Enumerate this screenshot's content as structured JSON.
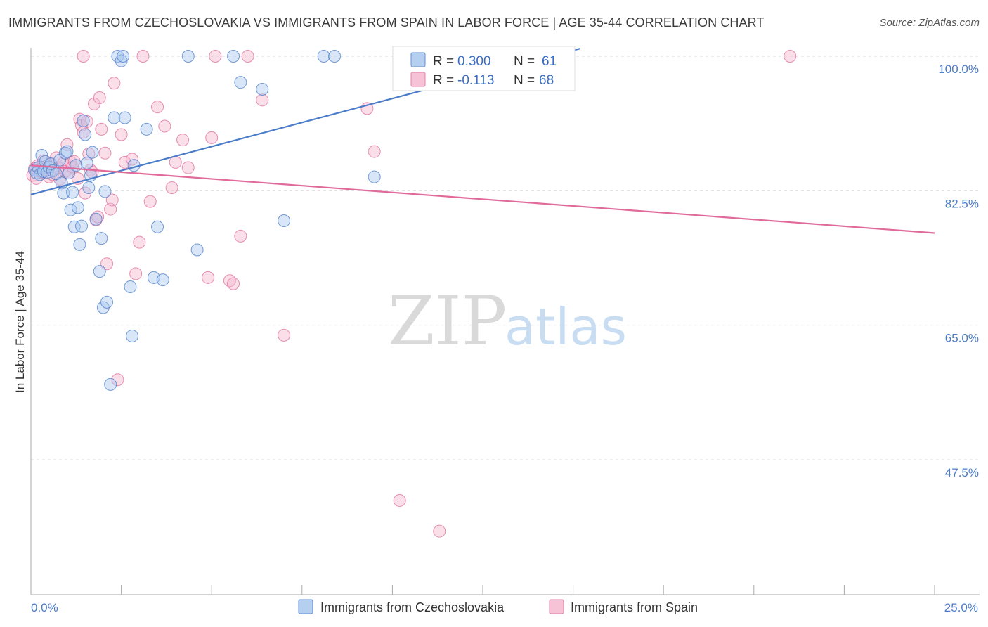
{
  "header": {
    "title": "IMMIGRANTS FROM CZECHOSLOVAKIA VS IMMIGRANTS FROM SPAIN IN LABOR FORCE | AGE 35-44 CORRELATION CHART",
    "source": "Source: ZipAtlas.com"
  },
  "watermark": {
    "zip": "ZIP",
    "atlas": "atlas"
  },
  "colors": {
    "blue": "#4a7cc9",
    "blue_fill": "#a9c7ef",
    "pink": "#e06b9a",
    "pink_fill": "#f5b8cf",
    "grid": "#dddddd"
  },
  "stats": [
    {
      "r_label": "R =",
      "r_value": "0.300",
      "n_label": "N =",
      "n_value": "61"
    },
    {
      "r_label": "R =",
      "r_value": "-0.113",
      "n_label": "N =",
      "n_value": "68"
    }
  ],
  "chart_data": {
    "type": "scatter",
    "title": "IMMIGRANTS FROM CZECHOSLOVAKIA VS IMMIGRANTS FROM SPAIN IN LABOR FORCE | AGE 35-44 CORRELATION CHART",
    "xlabel": "",
    "ylabel": "In Labor Force | Age 35-44",
    "xlim": [
      0,
      25
    ],
    "ylim": [
      32,
      102
    ],
    "x_tick_labels": [
      "0.0%",
      "25.0%"
    ],
    "y_ticks": [
      47.5,
      65.0,
      82.5,
      100.0
    ],
    "y_tick_labels": [
      "47.5%",
      "65.0%",
      "82.5%",
      "100.0%"
    ],
    "grid": true,
    "legend_position": "bottom",
    "series": [
      {
        "name": "Immigrants from Czechoslovakia",
        "color": "#4a7cc9",
        "R": 0.3,
        "N": 61,
        "trend": {
          "x0": 0.0,
          "y0": 82.0,
          "x1": 15.2,
          "y1": 101.0
        },
        "points": [
          [
            0.1,
            85.2
          ],
          [
            0.15,
            84.8
          ],
          [
            0.2,
            85.5
          ],
          [
            0.25,
            84.6
          ],
          [
            0.3,
            87.1
          ],
          [
            0.35,
            85.0
          ],
          [
            0.4,
            86.3
          ],
          [
            0.45,
            84.9
          ],
          [
            0.5,
            85.6
          ],
          [
            0.55,
            86.0
          ],
          [
            0.6,
            85.1
          ],
          [
            0.7,
            84.7
          ],
          [
            0.8,
            86.5
          ],
          [
            0.85,
            83.5
          ],
          [
            0.9,
            82.2
          ],
          [
            0.95,
            87.4
          ],
          [
            1.0,
            87.6
          ],
          [
            1.05,
            84.8
          ],
          [
            1.1,
            80.0
          ],
          [
            1.15,
            82.3
          ],
          [
            1.2,
            77.8
          ],
          [
            1.25,
            85.8
          ],
          [
            1.3,
            80.3
          ],
          [
            1.35,
            75.5
          ],
          [
            1.4,
            77.9
          ],
          [
            1.45,
            91.6
          ],
          [
            1.5,
            89.8
          ],
          [
            1.55,
            86.1
          ],
          [
            1.6,
            82.9
          ],
          [
            1.65,
            84.5
          ],
          [
            1.7,
            87.5
          ],
          [
            1.8,
            78.8
          ],
          [
            1.9,
            72.0
          ],
          [
            1.95,
            76.3
          ],
          [
            2.0,
            67.3
          ],
          [
            2.05,
            82.4
          ],
          [
            2.1,
            68.0
          ],
          [
            2.2,
            57.3
          ],
          [
            2.3,
            92.0
          ],
          [
            2.4,
            100.0
          ],
          [
            2.5,
            99.4
          ],
          [
            2.55,
            100.0
          ],
          [
            2.6,
            92.0
          ],
          [
            2.75,
            70.0
          ],
          [
            2.8,
            63.6
          ],
          [
            2.85,
            85.8
          ],
          [
            3.2,
            90.5
          ],
          [
            3.4,
            71.2
          ],
          [
            3.5,
            77.8
          ],
          [
            3.65,
            70.9
          ],
          [
            4.35,
            100.0
          ],
          [
            4.6,
            74.8
          ],
          [
            5.6,
            100.0
          ],
          [
            5.8,
            96.6
          ],
          [
            6.4,
            95.7
          ],
          [
            7.0,
            78.6
          ],
          [
            8.1,
            100.0
          ],
          [
            8.4,
            100.0
          ],
          [
            9.5,
            84.3
          ]
        ]
      },
      {
        "name": "Immigrants from Spain",
        "color": "#e06b9a",
        "R": -0.113,
        "N": 68,
        "trend": {
          "x0": 0.0,
          "y0": 85.8,
          "x1": 25.0,
          "y1": 77.0
        },
        "points": [
          [
            0.05,
            84.5
          ],
          [
            0.1,
            85.4
          ],
          [
            0.15,
            84.1
          ],
          [
            0.2,
            85.8
          ],
          [
            0.3,
            84.9
          ],
          [
            0.35,
            86.4
          ],
          [
            0.4,
            85.2
          ],
          [
            0.5,
            84.3
          ],
          [
            0.55,
            85.9
          ],
          [
            0.6,
            84.6
          ],
          [
            0.7,
            86.8
          ],
          [
            0.75,
            85.5
          ],
          [
            0.8,
            84.0
          ],
          [
            0.9,
            86.1
          ],
          [
            0.95,
            85.0
          ],
          [
            1.0,
            88.5
          ],
          [
            1.05,
            84.8
          ],
          [
            1.1,
            86.2
          ],
          [
            1.15,
            85.6
          ],
          [
            1.2,
            86.3
          ],
          [
            1.3,
            84.1
          ],
          [
            1.35,
            91.8
          ],
          [
            1.4,
            91.0
          ],
          [
            1.45,
            90.1
          ],
          [
            1.5,
            82.2
          ],
          [
            1.55,
            91.5
          ],
          [
            1.6,
            87.3
          ],
          [
            1.65,
            85.2
          ],
          [
            1.7,
            84.9
          ],
          [
            1.75,
            93.8
          ],
          [
            1.8,
            78.7
          ],
          [
            1.85,
            79.1
          ],
          [
            1.9,
            94.6
          ],
          [
            1.95,
            90.5
          ],
          [
            2.05,
            87.4
          ],
          [
            2.1,
            73.0
          ],
          [
            2.2,
            80.1
          ],
          [
            2.25,
            81.3
          ],
          [
            2.3,
            96.5
          ],
          [
            2.4,
            57.9
          ],
          [
            2.5,
            89.8
          ],
          [
            2.6,
            86.2
          ],
          [
            2.8,
            86.6
          ],
          [
            2.9,
            71.7
          ],
          [
            3.0,
            75.8
          ],
          [
            3.3,
            81.1
          ],
          [
            3.5,
            93.4
          ],
          [
            3.7,
            90.9
          ],
          [
            3.9,
            82.9
          ],
          [
            4.0,
            86.2
          ],
          [
            4.2,
            89.1
          ],
          [
            4.35,
            85.5
          ],
          [
            4.9,
            71.2
          ],
          [
            5.0,
            89.4
          ],
          [
            5.5,
            70.8
          ],
          [
            5.6,
            70.4
          ],
          [
            5.8,
            76.6
          ],
          [
            6.4,
            94.3
          ],
          [
            7.0,
            63.7
          ],
          [
            10.2,
            42.2
          ],
          [
            11.3,
            38.2
          ],
          [
            9.3,
            93.2
          ],
          [
            9.5,
            87.6
          ],
          [
            1.45,
            100.0
          ],
          [
            3.1,
            100.0
          ],
          [
            5.1,
            100.0
          ],
          [
            6.0,
            100.0
          ],
          [
            21.0,
            100.0
          ]
        ]
      }
    ]
  },
  "legend": {
    "items": [
      "Immigrants from Czechoslovakia",
      "Immigrants from Spain"
    ]
  }
}
